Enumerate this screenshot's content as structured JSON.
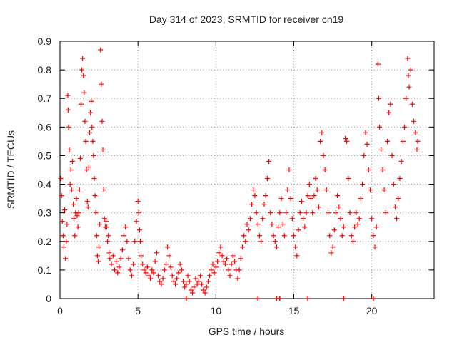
{
  "chart_data": {
    "type": "scatter",
    "title": "Day 314 of 2023, SRMTID for receiver cn19",
    "xlabel": "GPS time / hours",
    "ylabel": "SRMTID / TECUs",
    "xlim": [
      0,
      24
    ],
    "ylim": [
      0,
      0.9
    ],
    "xticks": [
      0,
      5,
      10,
      15,
      20
    ],
    "yticks": [
      0,
      0.1,
      0.2,
      0.3,
      0.4,
      0.5,
      0.6,
      0.7,
      0.8,
      0.9
    ],
    "grid": true,
    "marker": "+",
    "color": "#ff0000",
    "series": [
      {
        "name": "cn19",
        "points": [
          [
            0.05,
            0.42
          ],
          [
            0.1,
            0.36
          ],
          [
            0.15,
            0.27
          ],
          [
            0.2,
            0.22
          ],
          [
            0.25,
            0.18
          ],
          [
            0.3,
            0.31
          ],
          [
            0.35,
            0.14
          ],
          [
            0.4,
            0.2
          ],
          [
            0.45,
            0.26
          ],
          [
            0.5,
            0.71
          ],
          [
            0.52,
            0.66
          ],
          [
            0.55,
            0.6
          ],
          [
            0.6,
            0.52
          ],
          [
            0.65,
            0.4
          ],
          [
            0.7,
            0.45
          ],
          [
            0.75,
            0.38
          ],
          [
            0.8,
            0.48
          ],
          [
            0.85,
            0.33
          ],
          [
            0.9,
            0.28
          ],
          [
            0.95,
            0.22
          ],
          [
            1.0,
            0.3
          ],
          [
            1.05,
            0.35
          ],
          [
            1.1,
            0.29
          ],
          [
            1.15,
            0.25
          ],
          [
            1.2,
            0.3
          ],
          [
            1.25,
            0.38
          ],
          [
            1.3,
            0.49
          ],
          [
            1.35,
            0.68
          ],
          [
            1.4,
            0.8
          ],
          [
            1.45,
            0.84
          ],
          [
            1.5,
            0.78
          ],
          [
            1.55,
            0.72
          ],
          [
            1.6,
            0.62
          ],
          [
            1.65,
            0.55
          ],
          [
            1.7,
            0.45
          ],
          [
            1.75,
            0.34
          ],
          [
            1.8,
            0.32
          ],
          [
            1.85,
            0.46
          ],
          [
            1.9,
            0.58
          ],
          [
            1.95,
            0.65
          ],
          [
            2.0,
            0.69
          ],
          [
            2.05,
            0.6
          ],
          [
            2.1,
            0.55
          ],
          [
            2.15,
            0.5
          ],
          [
            2.2,
            0.42
          ],
          [
            2.25,
            0.36
          ],
          [
            2.3,
            0.3
          ],
          [
            2.35,
            0.22
          ],
          [
            2.4,
            0.15
          ],
          [
            2.45,
            0.13
          ],
          [
            2.5,
            0.18
          ],
          [
            2.55,
            0.26
          ],
          [
            2.6,
            0.87
          ],
          [
            2.65,
            0.75
          ],
          [
            2.7,
            0.62
          ],
          [
            2.75,
            0.52
          ],
          [
            2.8,
            0.38
          ],
          [
            2.85,
            0.28
          ],
          [
            2.9,
            0.25
          ],
          [
            2.95,
            0.27
          ],
          [
            3.0,
            0.25
          ],
          [
            3.05,
            0.2
          ],
          [
            3.1,
            0.22
          ],
          [
            3.15,
            0.16
          ],
          [
            3.2,
            0.14
          ],
          [
            3.3,
            0.12
          ],
          [
            3.4,
            0.15
          ],
          [
            3.5,
            0.1
          ],
          [
            3.6,
            0.13
          ],
          [
            3.7,
            0.09
          ],
          [
            3.8,
            0.11
          ],
          [
            3.9,
            0.14
          ],
          [
            4.0,
            0.17
          ],
          [
            4.1,
            0.22
          ],
          [
            4.2,
            0.25
          ],
          [
            4.3,
            0.2
          ],
          [
            4.4,
            0.14
          ],
          [
            4.5,
            0.1
          ],
          [
            4.6,
            0.08
          ],
          [
            4.7,
            0.12
          ],
          [
            4.8,
            0.2
          ],
          [
            4.9,
            0.27
          ],
          [
            5.0,
            0.34
          ],
          [
            5.05,
            0.3
          ],
          [
            5.1,
            0.24
          ],
          [
            5.15,
            0.2
          ],
          [
            5.2,
            0.15
          ],
          [
            5.3,
            0.12
          ],
          [
            5.4,
            0.1
          ],
          [
            5.5,
            0.09
          ],
          [
            5.6,
            0.11
          ],
          [
            5.7,
            0.08
          ],
          [
            5.8,
            0.07
          ],
          [
            5.9,
            0.1
          ],
          [
            6.0,
            0.09
          ],
          [
            6.1,
            0.13
          ],
          [
            6.2,
            0.16
          ],
          [
            6.3,
            0.08
          ],
          [
            6.4,
            0.06
          ],
          [
            6.5,
            0.05
          ],
          [
            6.6,
            0.07
          ],
          [
            6.7,
            0.1
          ],
          [
            6.8,
            0.12
          ],
          [
            6.9,
            0.18
          ],
          [
            7.0,
            0.15
          ],
          [
            7.1,
            0.11
          ],
          [
            7.2,
            0.08
          ],
          [
            7.3,
            0.06
          ],
          [
            7.4,
            0.05
          ],
          [
            7.5,
            0.07
          ],
          [
            7.6,
            0.09
          ],
          [
            7.7,
            0.12
          ],
          [
            7.8,
            0.1
          ],
          [
            7.9,
            0.06
          ],
          [
            8.0,
            0.04
          ],
          [
            8.1,
            0.05
          ],
          [
            8.2,
            0.08
          ],
          [
            8.3,
            0.06
          ],
          [
            8.4,
            0.03
          ],
          [
            8.5,
            0.02
          ],
          [
            8.6,
            0.04
          ],
          [
            8.7,
            0.07
          ],
          [
            8.8,
            0.05
          ],
          [
            8.9,
            0.06
          ],
          [
            9.0,
            0.08
          ],
          [
            9.1,
            0.05
          ],
          [
            9.2,
            0.03
          ],
          [
            9.3,
            0.02
          ],
          [
            9.4,
            0.04
          ],
          [
            9.5,
            0.06
          ],
          [
            9.6,
            0.08
          ],
          [
            9.7,
            0.1
          ],
          [
            9.8,
            0.12
          ],
          [
            9.9,
            0.09
          ],
          [
            10.0,
            0.11
          ],
          [
            10.1,
            0.13
          ],
          [
            10.2,
            0.16
          ],
          [
            10.3,
            0.18
          ],
          [
            10.4,
            0.15
          ],
          [
            10.5,
            0.13
          ],
          [
            10.6,
            0.12
          ],
          [
            10.7,
            0.14
          ],
          [
            10.8,
            0.1
          ],
          [
            10.9,
            0.08
          ],
          [
            11.0,
            0.12
          ],
          [
            11.1,
            0.15
          ],
          [
            11.2,
            0.13
          ],
          [
            11.3,
            0.1
          ],
          [
            11.4,
            0.07
          ],
          [
            11.5,
            0.1
          ],
          [
            11.6,
            0.14
          ],
          [
            11.7,
            0.18
          ],
          [
            11.8,
            0.22
          ],
          [
            11.9,
            0.2
          ],
          [
            12.0,
            0.26
          ],
          [
            12.1,
            0.24
          ],
          [
            12.2,
            0.28
          ],
          [
            12.3,
            0.33
          ],
          [
            12.4,
            0.38
          ],
          [
            12.5,
            0.36
          ],
          [
            12.6,
            0.3
          ],
          [
            12.7,
            0.26
          ],
          [
            12.8,
            0.22
          ],
          [
            12.9,
            0.2
          ],
          [
            13.0,
            0.28
          ],
          [
            13.1,
            0.33
          ],
          [
            13.2,
            0.36
          ],
          [
            13.3,
            0.42
          ],
          [
            13.4,
            0.48
          ],
          [
            13.5,
            0.3
          ],
          [
            13.6,
            0.26
          ],
          [
            13.7,
            0.22
          ],
          [
            13.8,
            0.2
          ],
          [
            13.9,
            0.18
          ],
          [
            14.0,
            0.25
          ],
          [
            14.1,
            0.3
          ],
          [
            14.2,
            0.35
          ],
          [
            14.3,
            0.26
          ],
          [
            14.4,
            0.22
          ],
          [
            14.5,
            0.3
          ],
          [
            14.6,
            0.38
          ],
          [
            14.7,
            0.45
          ],
          [
            14.8,
            0.35
          ],
          [
            14.9,
            0.28
          ],
          [
            15.0,
            0.22
          ],
          [
            15.1,
            0.18
          ],
          [
            15.2,
            0.15
          ],
          [
            15.3,
            0.24
          ],
          [
            15.4,
            0.3
          ],
          [
            15.5,
            0.34
          ],
          [
            15.6,
            0.28
          ],
          [
            15.7,
            0.25
          ],
          [
            15.8,
            0.3
          ],
          [
            15.9,
            0.36
          ],
          [
            16.0,
            0.4
          ],
          [
            16.1,
            0.35
          ],
          [
            16.2,
            0.3
          ],
          [
            16.3,
            0.36
          ],
          [
            16.4,
            0.42
          ],
          [
            16.5,
            0.38
          ],
          [
            16.6,
            0.32
          ],
          [
            16.7,
            0.55
          ],
          [
            16.8,
            0.58
          ],
          [
            16.9,
            0.5
          ],
          [
            17.0,
            0.45
          ],
          [
            17.1,
            0.38
          ],
          [
            17.2,
            0.3
          ],
          [
            17.3,
            0.22
          ],
          [
            17.4,
            0.16
          ],
          [
            17.5,
            0.18
          ],
          [
            17.6,
            0.24
          ],
          [
            17.7,
            0.3
          ],
          [
            17.8,
            0.36
          ],
          [
            17.9,
            0.32
          ],
          [
            18.0,
            0.28
          ],
          [
            18.1,
            0.22
          ],
          [
            18.2,
            0.25
          ],
          [
            18.3,
            0.56
          ],
          [
            18.4,
            0.55
          ],
          [
            18.5,
            0.42
          ],
          [
            18.6,
            0.3
          ],
          [
            18.7,
            0.22
          ],
          [
            18.8,
            0.2
          ],
          [
            18.9,
            0.25
          ],
          [
            19.0,
            0.3
          ],
          [
            19.1,
            0.26
          ],
          [
            19.2,
            0.28
          ],
          [
            19.3,
            0.35
          ],
          [
            19.4,
            0.4
          ],
          [
            19.5,
            0.5
          ],
          [
            19.6,
            0.58
          ],
          [
            19.7,
            0.54
          ],
          [
            19.8,
            0.45
          ],
          [
            19.9,
            0.38
          ],
          [
            20.0,
            0.28
          ],
          [
            20.1,
            0.22
          ],
          [
            20.2,
            0.18
          ],
          [
            20.3,
            0.25
          ],
          [
            20.4,
            0.82
          ],
          [
            20.45,
            0.7
          ],
          [
            20.5,
            0.6
          ],
          [
            20.6,
            0.52
          ],
          [
            20.7,
            0.45
          ],
          [
            20.8,
            0.38
          ],
          [
            20.9,
            0.3
          ],
          [
            21.0,
            0.55
          ],
          [
            21.1,
            0.65
          ],
          [
            21.2,
            0.68
          ],
          [
            21.3,
            0.5
          ],
          [
            21.4,
            0.4
          ],
          [
            21.5,
            0.32
          ],
          [
            21.6,
            0.28
          ],
          [
            21.7,
            0.35
          ],
          [
            21.8,
            0.42
          ],
          [
            21.9,
            0.48
          ],
          [
            22.0,
            0.55
          ],
          [
            22.1,
            0.6
          ],
          [
            22.2,
            0.7
          ],
          [
            22.3,
            0.84
          ],
          [
            22.35,
            0.78
          ],
          [
            22.4,
            0.74
          ],
          [
            22.5,
            0.8
          ],
          [
            22.6,
            0.68
          ],
          [
            22.7,
            0.62
          ],
          [
            22.8,
            0.58
          ],
          [
            22.9,
            0.52
          ],
          [
            22.95,
            0.55
          ]
        ]
      }
    ],
    "baseline_markers": [
      8.1,
      12.7,
      13.9,
      14.1,
      15.9,
      18.2,
      20.1
    ]
  }
}
